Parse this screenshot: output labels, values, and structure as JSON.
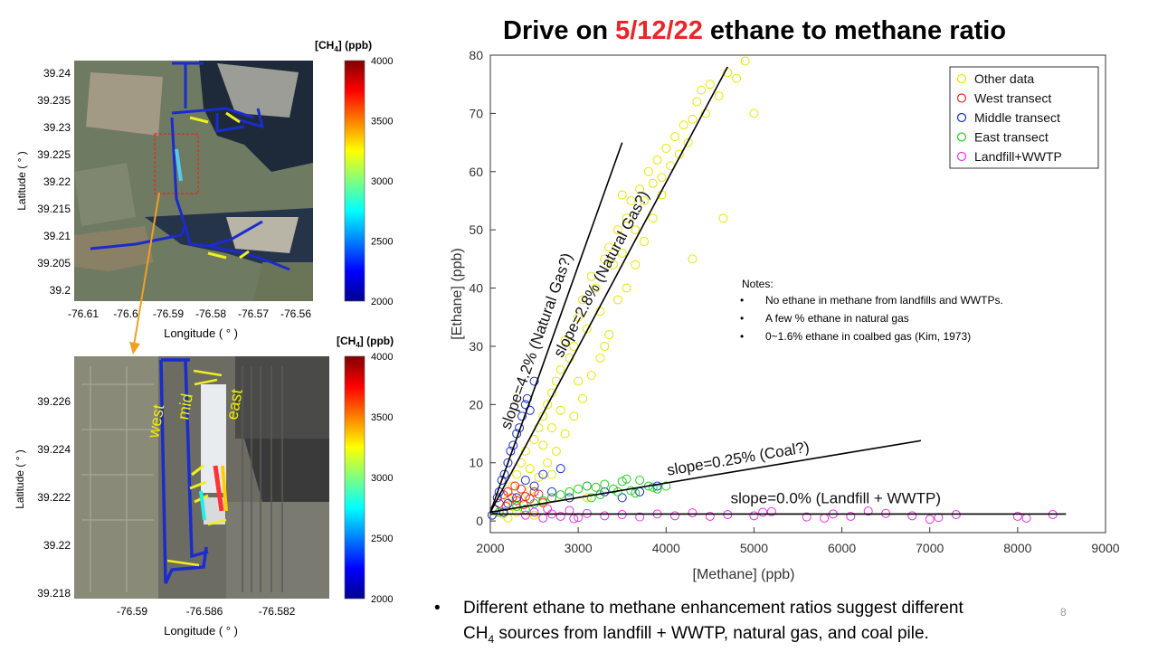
{
  "slide": {
    "title_prefix": "Drive on ",
    "title_date": "5/12/22",
    "title_suffix": " ethane to methane ratio",
    "bullet": "•",
    "bullet_text_1": "Different ethane to methane enhancement ratios suggest different",
    "bullet_text_2a": "CH",
    "bullet_text_2sub": "4",
    "bullet_text_2b": " sources from landfill + WWTP, natural gas, and coal pile.",
    "page_number": "8",
    "colors": {
      "title_date": "#e8262a",
      "track": "#1a2ccc"
    }
  },
  "map_top": {
    "colorbar_label": "[CH",
    "colorbar_label_sub": "4",
    "colorbar_label_unit": "]  (ppb)",
    "colorbar_ticks": [
      "4000",
      "3500",
      "3000",
      "2500",
      "2000"
    ],
    "ylabel": "Latitude ( ° )",
    "xlabel": "Longitude ( ° )",
    "yticks": [
      "39.24",
      "39.235",
      "39.23",
      "39.225",
      "39.22",
      "39.215",
      "39.21",
      "39.205",
      "39.2"
    ],
    "xticks": [
      "-76.61",
      "-76.6",
      "-76.59",
      "-76.58",
      "-76.57",
      "-76.56"
    ]
  },
  "map_bottom": {
    "colorbar_label": "[CH",
    "colorbar_label_sub": "4",
    "colorbar_label_unit": "]  (ppb)",
    "colorbar_ticks": [
      "4000",
      "3500",
      "3000",
      "2500",
      "2000"
    ],
    "ylabel": "Latitude ( ° )",
    "xlabel": "Longitude ( ° )",
    "yticks": [
      "39.226",
      "39.224",
      "39.222",
      "39.22",
      "39.218"
    ],
    "xticks": [
      "-76.59",
      "-76.586",
      "-76.582"
    ],
    "labels": [
      "west",
      "mid",
      "east"
    ]
  },
  "chart_data": {
    "type": "scatter",
    "title": "Drive on 5/12/22 ethane to methane ratio",
    "xlabel": "[Methane]  (ppb)",
    "ylabel": "[Ethane] (ppb)",
    "xlim": [
      2000,
      9000
    ],
    "ylim": [
      -2,
      80
    ],
    "xticks": [
      2000,
      3000,
      4000,
      5000,
      6000,
      7000,
      8000,
      9000
    ],
    "yticks": [
      0,
      10,
      20,
      30,
      40,
      50,
      60,
      70,
      80
    ],
    "grid": false,
    "legend_position": "top-right",
    "series": [
      {
        "name": "Other data",
        "color": "#e6e600",
        "points": [
          [
            2020,
            1
          ],
          [
            2050,
            2
          ],
          [
            2100,
            3
          ],
          [
            2150,
            1.5
          ],
          [
            2200,
            4
          ],
          [
            2250,
            6
          ],
          [
            2300,
            8
          ],
          [
            2350,
            10
          ],
          [
            2400,
            12
          ],
          [
            2450,
            9
          ],
          [
            2500,
            14
          ],
          [
            2550,
            16
          ],
          [
            2600,
            18
          ],
          [
            2650,
            20
          ],
          [
            2700,
            22
          ],
          [
            2750,
            24
          ],
          [
            2800,
            26
          ],
          [
            2850,
            31
          ],
          [
            2900,
            28
          ],
          [
            2950,
            30
          ],
          [
            3000,
            35
          ],
          [
            3050,
            38
          ],
          [
            3100,
            33
          ],
          [
            3150,
            42
          ],
          [
            3200,
            40
          ],
          [
            3250,
            36
          ],
          [
            3300,
            45
          ],
          [
            3350,
            47
          ],
          [
            3400,
            44
          ],
          [
            3450,
            50
          ],
          [
            3500,
            46
          ],
          [
            3550,
            52
          ],
          [
            3600,
            55
          ],
          [
            3650,
            50
          ],
          [
            3700,
            57
          ],
          [
            3750,
            55
          ],
          [
            3800,
            60
          ],
          [
            3850,
            58
          ],
          [
            3900,
            62
          ],
          [
            3950,
            59
          ],
          [
            4000,
            64
          ],
          [
            4050,
            61
          ],
          [
            4100,
            66
          ],
          [
            4150,
            63
          ],
          [
            4200,
            68
          ],
          [
            4250,
            65
          ],
          [
            4300,
            69
          ],
          [
            4350,
            72
          ],
          [
            4400,
            74
          ],
          [
            4450,
            70
          ],
          [
            4500,
            75
          ],
          [
            4600,
            73
          ],
          [
            4700,
            77
          ],
          [
            4800,
            76
          ],
          [
            4900,
            79
          ],
          [
            5000,
            70
          ],
          [
            4650,
            52
          ],
          [
            3500,
            56
          ],
          [
            2700,
            8
          ],
          [
            2900,
            5
          ],
          [
            3100,
            4
          ],
          [
            2600,
            3
          ],
          [
            2400,
            2
          ],
          [
            2300,
            1.5
          ],
          [
            2500,
            1
          ],
          [
            2200,
            0.5
          ],
          [
            2150,
            1.2
          ],
          [
            2250,
            2.5
          ],
          [
            2350,
            3.8
          ],
          [
            2450,
            5.2
          ],
          [
            2550,
            7.5
          ],
          [
            2650,
            10
          ],
          [
            2750,
            12
          ],
          [
            2850,
            15
          ],
          [
            2950,
            18
          ],
          [
            3050,
            21
          ],
          [
            3150,
            25
          ],
          [
            3250,
            28
          ],
          [
            3350,
            32
          ],
          [
            3450,
            38
          ],
          [
            3550,
            40
          ],
          [
            3650,
            44
          ],
          [
            3750,
            48
          ],
          [
            3850,
            52
          ],
          [
            3950,
            56
          ],
          [
            4300,
            45
          ],
          [
            3300,
            30
          ],
          [
            3000,
            24
          ],
          [
            2800,
            19
          ],
          [
            2600,
            13
          ],
          [
            2700,
            16
          ]
        ]
      },
      {
        "name": "West transect",
        "color": "#e8262a",
        "points": [
          [
            2050,
            2
          ],
          [
            2100,
            3
          ],
          [
            2150,
            4.5
          ],
          [
            2200,
            5
          ],
          [
            2250,
            4
          ],
          [
            2300,
            3.5
          ],
          [
            2350,
            5.5
          ],
          [
            2400,
            4.2
          ],
          [
            2450,
            3.8
          ],
          [
            2500,
            5
          ],
          [
            2550,
            4.6
          ],
          [
            2600,
            3.2
          ],
          [
            2180,
            2.5
          ],
          [
            2280,
            6
          ],
          [
            2380,
            2.8
          ],
          [
            2700,
            4
          ]
        ]
      },
      {
        "name": "Middle transect",
        "color": "#1a2ccc",
        "points": [
          [
            2020,
            1
          ],
          [
            2050,
            2
          ],
          [
            2080,
            4
          ],
          [
            2100,
            5
          ],
          [
            2130,
            7
          ],
          [
            2160,
            8
          ],
          [
            2200,
            10
          ],
          [
            2230,
            12
          ],
          [
            2260,
            13
          ],
          [
            2300,
            15
          ],
          [
            2330,
            16
          ],
          [
            2360,
            18
          ],
          [
            2400,
            20
          ],
          [
            2420,
            21
          ],
          [
            2450,
            19
          ],
          [
            2500,
            24
          ],
          [
            2200,
            3
          ],
          [
            2300,
            4
          ],
          [
            2500,
            6
          ],
          [
            2700,
            5
          ],
          [
            2900,
            4
          ],
          [
            3100,
            6
          ],
          [
            3300,
            5
          ],
          [
            3500,
            4
          ],
          [
            3700,
            5
          ],
          [
            3900,
            6
          ],
          [
            2600,
            8
          ],
          [
            2800,
            9
          ],
          [
            2400,
            7
          ],
          [
            2150,
            1.5
          ]
        ]
      },
      {
        "name": "East transect",
        "color": "#22cc22",
        "points": [
          [
            2100,
            1.5
          ],
          [
            2300,
            2.5
          ],
          [
            2500,
            3
          ],
          [
            2700,
            4
          ],
          [
            2800,
            4.5
          ],
          [
            2900,
            5
          ],
          [
            3000,
            5.5
          ],
          [
            3100,
            6
          ],
          [
            3200,
            5.8
          ],
          [
            3300,
            6.3
          ],
          [
            3400,
            5.5
          ],
          [
            3500,
            6.8
          ],
          [
            3600,
            5.2
          ],
          [
            3700,
            7
          ],
          [
            3800,
            6
          ],
          [
            3900,
            5.5
          ],
          [
            4000,
            6
          ],
          [
            2600,
            3.5
          ],
          [
            3250,
            4.5
          ],
          [
            3450,
            5
          ],
          [
            3650,
            4.8
          ],
          [
            3850,
            5.8
          ],
          [
            2400,
            2
          ],
          [
            3150,
            4
          ],
          [
            3550,
            7.2
          ]
        ]
      },
      {
        "name": "Landfill+WWTP",
        "color": "#e633e6",
        "points": [
          [
            2400,
            1
          ],
          [
            2500,
            1.5
          ],
          [
            2600,
            0.5
          ],
          [
            2700,
            1.2
          ],
          [
            2800,
            0.8
          ],
          [
            2900,
            1.8
          ],
          [
            3000,
            0.6
          ],
          [
            3100,
            1.3
          ],
          [
            3300,
            0.9
          ],
          [
            3500,
            1.1
          ],
          [
            3700,
            0.7
          ],
          [
            3900,
            1.2
          ],
          [
            4100,
            0.9
          ],
          [
            4300,
            1.4
          ],
          [
            4500,
            0.8
          ],
          [
            4700,
            1.1
          ],
          [
            5000,
            0.9
          ],
          [
            5200,
            1.6
          ],
          [
            5600,
            0.7
          ],
          [
            5900,
            1.2
          ],
          [
            6100,
            0.8
          ],
          [
            6500,
            1.3
          ],
          [
            6800,
            0.9
          ],
          [
            7100,
            0.6
          ],
          [
            7300,
            1.1
          ],
          [
            8000,
            0.8
          ],
          [
            8100,
            0.5
          ],
          [
            8400,
            1.1
          ],
          [
            2650,
            2.1
          ],
          [
            2950,
            0.4
          ],
          [
            5100,
            1.5
          ],
          [
            5800,
            0.5
          ],
          [
            6300,
            1.7
          ],
          [
            7000,
            0.3
          ]
        ]
      }
    ],
    "fit_lines": [
      {
        "label": "slope=4.2% (Natural Gas?)",
        "from": [
          2000,
          1.5
        ],
        "to": [
          3500,
          65
        ]
      },
      {
        "label": "slope=2.8% (Natural Gas?)",
        "from": [
          2000,
          1.5
        ],
        "to": [
          4700,
          78
        ]
      },
      {
        "label": "slope=0.25% (Coal?)",
        "from": [
          2000,
          1.5
        ],
        "to": [
          6900,
          13.8
        ]
      },
      {
        "label": "slope=0.0% (Landfill + WWTP)",
        "from": [
          2000,
          1.2
        ],
        "to": [
          8550,
          1.2
        ]
      }
    ],
    "notes_title": "Notes:",
    "notes": [
      "No ethane in methane from landfills and WWTPs.",
      "A few % ethane in natural gas",
      "0~1.6% ethane in coalbed gas (Kim, 1973)"
    ]
  }
}
